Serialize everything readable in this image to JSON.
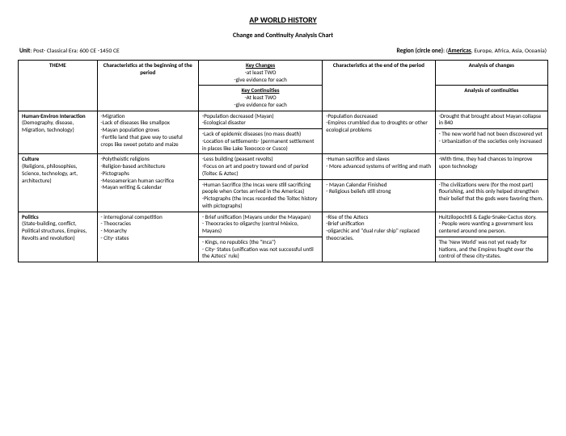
{
  "title": "AP WORLD HISTORY",
  "subtitle": "Change and Continuity Analysis Chart",
  "meta": {
    "unit_label": "Unit",
    "unit_value": ":    Post- Classical Era: 600 CE -1450 CE",
    "region_label": "Region (circle one)",
    "region_value": ": (",
    "region_sel": "Americas",
    "region_rest": ", Europe, Africa, Asia, Oceania)"
  },
  "headers": {
    "theme": "THEME",
    "begin": "Characteristics at the beginning of the period",
    "key_changes_t": "Key Changes",
    "key_changes_s1": "-at least TWO",
    "key_changes_s2": "-give evidence for each",
    "end": "Characteristics at the end of the period",
    "anal_changes": "Analysis of changes",
    "key_cont_t": "Key Continuities",
    "key_cont_s1": "-At least TWO",
    "key_cont_s2": "-give evidence for each",
    "anal_cont": "Analysis of continuities"
  },
  "rows": {
    "r1": {
      "theme_h": "Human-Environ Interaction",
      "theme_s": "(Demography, disease, Migration, technology)",
      "begin": "-Migration\n-Lack of diseases like smallpox\n-Mayan population grows\n-Fertile land that gave way to useful crops like sweet potato and maize",
      "chg": "-Population decreased (Mayan)\n-Ecological disaster",
      "end": "-Population decreased\n-Empires crumbled due to droughts or other ecological problems",
      "achg": "-Drought that brought about Mayan collapse in 840",
      "cont": "-Lack of epidemic diseases (no mass death)\n-Location of settlements- (permanent settlement in places like Lake Texococo or Cusco)",
      "acont": "- The new world had not been discovered yet\n- Urbanization of the societies only increased"
    },
    "r2": {
      "theme_h": "Culture",
      "theme_s": "(Religions, philosophies, Science, technology, art, architecture)",
      "begin": "-Polytheistic religions\n-Religion-based architecture\n-Pictographs\n-Mesoamerican human sacrifice\n-Mayan writing & calendar",
      "chg": "-Less building (peasant revolts)\n-Focus on art and poetry toward end of period (Toltec & Aztec)",
      "end": "-Human sacrifice and slaves\n- More advanced systems of writing and math",
      "achg": "-With time, they had chances to improve upon technology",
      "cont": "-Human Sacrifice (the Incas were still sacrificing people when Cortes arrived in the Americas)\n-Pictographs (the Incas recorded the Toltec history with pictographs)",
      "end2": "- Mayan Calendar Finished\n- Religious beliefs still strong",
      "acont": "-The civilizations were (for the most part) flourishing, and this only helped strengthen their belief that the gods were favoring them."
    },
    "r3": {
      "theme_h": "Politics",
      "theme_s": "(State-building, conflict, Political structures, Empires, Revolts and revolution)",
      "begin": "- interregional competition\n- Theocracies\n- Monarchy\n- City- states",
      "chg": "- Brief unification (Mayans under the Mayapan)\n- Theocracies to oligarchy (central México, Mayans)",
      "end": "-Rise of the Aztecs\n-Brief unification\n-oligarchic and \"dual ruler ship\" replaced theocracies.",
      "achg": "Huitzilopochtli & Eagle-Snake-Cactus story.\n- People were wanting a government less centered around one person.",
      "cont": "- Kings, no republics (the \"Inca\")\n- City- States (unification was not successful until the Aztecs' rule)",
      "acont": "The 'New World' was not yet ready for Nations, and the Empires fought over the control of these city-states."
    }
  }
}
